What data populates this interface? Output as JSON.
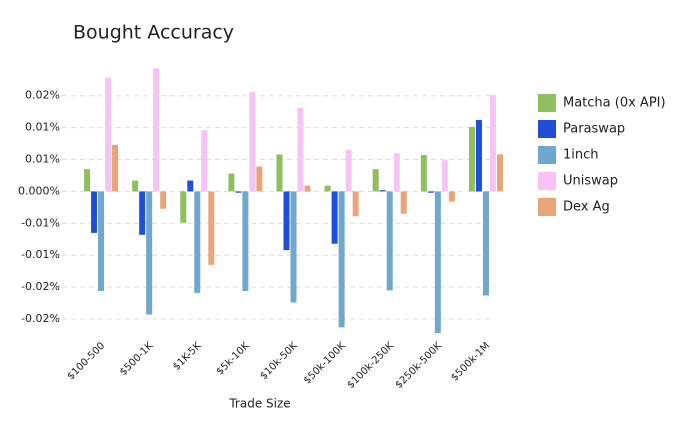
{
  "chart_data": {
    "type": "bar",
    "title": "Bought Accuracy",
    "x_label": "Trade Size",
    "categories": [
      "$100-500",
      "$500-1K",
      "$1K-5K",
      "$5k-10K",
      "$10k-50K",
      "$50k-100K",
      "$100k-250K",
      "$250k-500K",
      "$500k-1M"
    ],
    "series": [
      {
        "name": "Matcha (0x API)",
        "color": "#8fbf5e",
        "values": [
          0.0035,
          0.0017,
          -0.0049,
          0.0028,
          0.0058,
          0.0009,
          0.0035,
          0.0057,
          0.0101
        ]
      },
      {
        "name": "Paraswap",
        "color": "#1e4fd8",
        "values": [
          -0.0065,
          -0.0068,
          0.0017,
          -0.0002,
          -0.0092,
          -0.0082,
          0.0002,
          -0.0002,
          0.0112
        ]
      },
      {
        "name": "1inch",
        "color": "#6fa8cf",
        "values": [
          -0.0156,
          -0.0193,
          -0.0159,
          -0.0156,
          -0.0174,
          -0.0213,
          -0.0155,
          -0.0222,
          -0.0163
        ]
      },
      {
        "name": "Uniswap",
        "color": "#f7c2f5",
        "values": [
          0.0178,
          0.0193,
          0.0096,
          0.0156,
          0.0131,
          0.0065,
          0.006,
          0.0049,
          0.0151
        ]
      },
      {
        "name": "Dex Ag",
        "color": "#e8a57a",
        "values": [
          0.0073,
          -0.0027,
          -0.0115,
          0.0039,
          0.0009,
          -0.0039,
          -0.0035,
          -0.0016,
          0.0058
        ]
      }
    ],
    "ylim": [
      -0.0225,
      0.0195
    ],
    "yticks": [
      {
        "value": 0.015,
        "label": "0.02%"
      },
      {
        "value": 0.01,
        "label": "0.01%"
      },
      {
        "value": 0.005,
        "label": "0.01%"
      },
      {
        "value": 0,
        "label": "0.000%"
      },
      {
        "value": -0.005,
        "label": "-0.01%"
      },
      {
        "value": -0.01,
        "label": "-0.01%"
      },
      {
        "value": -0.015,
        "label": "-0.02%"
      },
      {
        "value": -0.02,
        "label": "-0.02%"
      }
    ],
    "grid": true,
    "legend": "right"
  }
}
